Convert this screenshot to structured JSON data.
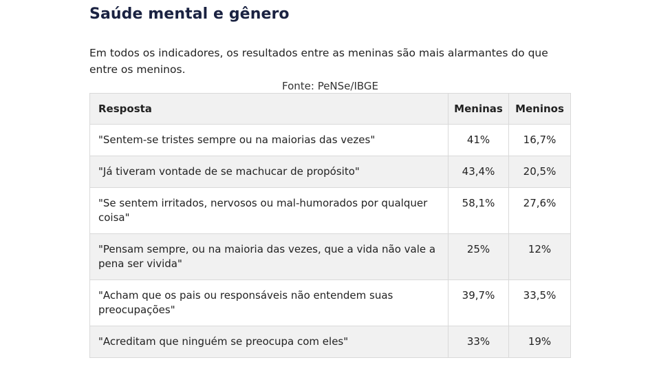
{
  "chart_data": {
    "type": "table",
    "title": "Saúde mental e gênero",
    "subtitle": "Em todos os indicadores, os resultados entre as meninas são mais alarmantes do que entre os meninos.",
    "source": "Fonte: PeNSe/IBGE",
    "columns": [
      "Resposta",
      "Meninas",
      "Meninos"
    ],
    "rows": [
      {
        "resposta": "\"Sentem-se tristes sempre ou na maiorias das vezes\"",
        "meninas": "41%",
        "meninos": "16,7%"
      },
      {
        "resposta": "\"Já tiveram vontade de se machucar de propósito\"",
        "meninas": "43,4%",
        "meninos": "20,5%"
      },
      {
        "resposta": "\"Se sentem irritados, nervosos ou mal-humorados por qualquer coisa\"",
        "meninas": "58,1%",
        "meninos": "27,6%"
      },
      {
        "resposta": "\"Pensam sempre, ou na maioria das vezes, que a vida não vale a pena ser vivida\"",
        "meninas": "25%",
        "meninos": "12%"
      },
      {
        "resposta": "\"Acham que os pais ou responsáveis não entendem suas preocupações\"",
        "meninas": "39,7%",
        "meninos": "33,5%"
      },
      {
        "resposta": "\"Acreditam que ninguém se preocupa com eles\"",
        "meninas": "33%",
        "meninos": "19%"
      }
    ]
  },
  "colors": {
    "title": "#1a2241",
    "header_bg": "#f1f1f1",
    "row_alt_bg": "#f1f1f1",
    "border": "#d9d9d9"
  }
}
